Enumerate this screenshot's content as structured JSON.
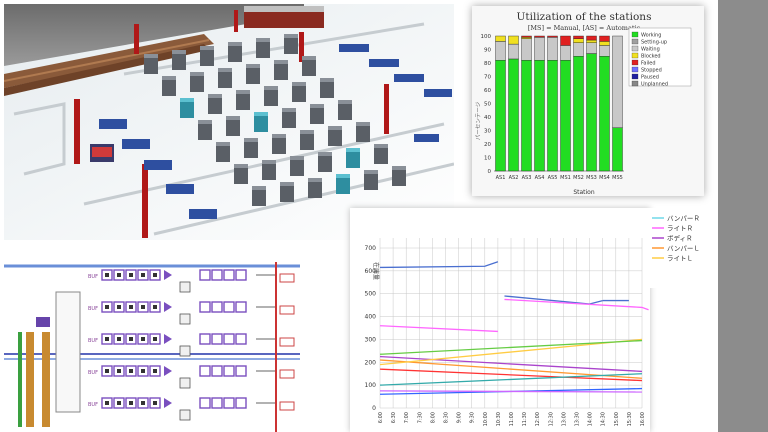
{
  "utilization": {
    "title": "Utilization of the stations",
    "subtitle": "[MS] = Manual, [AS] = Automatic",
    "xlabel": "Station",
    "ylabel": "パーセンテージ",
    "ytick_labels": [
      "0",
      "10",
      "20",
      "30",
      "40",
      "50",
      "60",
      "70",
      "80",
      "90",
      "100"
    ],
    "colors": {
      "Working": "#22dd22",
      "Setting-up": "#a0a0a0",
      "Waiting": "#c8c8c8",
      "Blocked": "#f0e020",
      "Failed": "#e02020",
      "Stopped": "#7070ff",
      "Paused": "#2020a0",
      "Unplanned": "#888888"
    },
    "chart_data": {
      "type": "bar",
      "stacked": true,
      "categories": [
        "AS1",
        "AS2",
        "AS3",
        "AS4",
        "AS5",
        "MS1",
        "MS2",
        "MS3",
        "MS4",
        "MS5"
      ],
      "ylim": [
        0,
        100
      ],
      "series": [
        {
          "name": "Working",
          "values": [
            82,
            83,
            82,
            82,
            82,
            82,
            85,
            87,
            85,
            32
          ]
        },
        {
          "name": "Setting-up",
          "values": [
            0,
            0,
            0,
            0,
            0,
            0,
            0,
            0,
            0,
            0
          ]
        },
        {
          "name": "Waiting",
          "values": [
            14,
            11,
            16,
            17,
            17,
            11,
            10,
            8,
            8,
            68
          ]
        },
        {
          "name": "Blocked",
          "values": [
            4,
            6,
            1,
            0,
            0,
            0,
            3,
            2,
            3,
            0
          ]
        },
        {
          "name": "Failed",
          "values": [
            0,
            0,
            1,
            1,
            1,
            7,
            2,
            3,
            4,
            0
          ]
        },
        {
          "name": "Stopped",
          "values": [
            0,
            0,
            0,
            0,
            0,
            0,
            0,
            0,
            0,
            0
          ]
        },
        {
          "name": "Paused",
          "values": [
            0,
            0,
            0,
            0,
            0,
            0,
            0,
            0,
            0,
            0
          ]
        },
        {
          "name": "Unplanned",
          "values": [
            0,
            0,
            0,
            0,
            0,
            0,
            0,
            0,
            0,
            0
          ]
        }
      ]
    }
  },
  "trend": {
    "ylabel": "在庫量",
    "ytick_labels": [
      "0",
      "100",
      "200",
      "300",
      "400",
      "500",
      "600",
      "700"
    ],
    "xtick_labels": [
      "6:00",
      "6:30",
      "7:00",
      "7:30",
      "8:00",
      "8:30",
      "9:00",
      "9:30",
      "10:00",
      "10:30",
      "11:00",
      "11:30",
      "12:00",
      "12:30",
      "13:00",
      "13:30",
      "14:00",
      "14:30",
      "15:00",
      "15:30",
      "16:00"
    ],
    "legend_labels": [
      "バンパーＲ",
      "ライトＲ",
      "ボディＲ",
      "バンパーＬ",
      "ライトＬ"
    ],
    "colors": {
      "s1": "#6fd8e8",
      "s2": "#ff66ff",
      "s3": "#aa44cc",
      "s4": "#ff9933",
      "s5": "#ffcc44"
    },
    "chart_data": {
      "type": "line",
      "ylim": [
        0,
        700
      ],
      "series": [
        {
          "name": "バンパーＲ",
          "color": "#4a6fd0",
          "segments": [
            [
              [
                0,
                615
              ],
              [
                8,
                620
              ],
              [
                9,
                640
              ]
            ],
            [
              [
                9.5,
                490
              ],
              [
                16,
                455
              ],
              [
                17,
                470
              ]
            ],
            [
              [
                17,
                470
              ],
              [
                19,
                470
              ]
            ]
          ]
        },
        {
          "name": "ライトＲ",
          "color": "#ff66ff",
          "segments": [
            [
              [
                0,
                360
              ],
              [
                9,
                335
              ]
            ],
            [
              [
                9.5,
                475
              ],
              [
                20,
                440
              ],
              [
                20.5,
                430
              ]
            ]
          ]
        },
        {
          "name": "ボディＲ",
          "color": "#aa44cc",
          "segments": [
            [
              [
                0,
                225
              ],
              [
                20,
                160
              ]
            ]
          ]
        },
        {
          "name": "バンパーＬ",
          "color": "#ff9933",
          "segments": [
            [
              [
                0,
                210
              ],
              [
                20,
                130
              ]
            ]
          ]
        },
        {
          "name": "ライトＬ",
          "color": "#ffcc44",
          "segments": [
            [
              [
                0,
                190
              ],
              [
                20,
                300
              ]
            ]
          ]
        },
        {
          "name": "",
          "color": "#66cc44",
          "segments": [
            [
              [
                0,
                235
              ],
              [
                20,
                295
              ]
            ]
          ]
        },
        {
          "name": "",
          "color": "#ff3333",
          "segments": [
            [
              [
                0,
                170
              ],
              [
                20,
                120
              ]
            ]
          ]
        },
        {
          "name": "",
          "color": "#33aaaa",
          "segments": [
            [
              [
                0,
                100
              ],
              [
                20,
                150
              ]
            ]
          ]
        },
        {
          "name": "",
          "color": "#3366ff",
          "segments": [
            [
              [
                0,
                60
              ],
              [
                20,
                85
              ]
            ]
          ]
        },
        {
          "name": "",
          "color": "#cc66ff",
          "segments": [
            [
              [
                0,
                75
              ],
              [
                20,
                70
              ]
            ]
          ]
        }
      ]
    }
  },
  "schematic": {
    "buffer_labels": [
      "BUF",
      "BUF",
      "BUF",
      "BUF",
      "BUF"
    ]
  }
}
